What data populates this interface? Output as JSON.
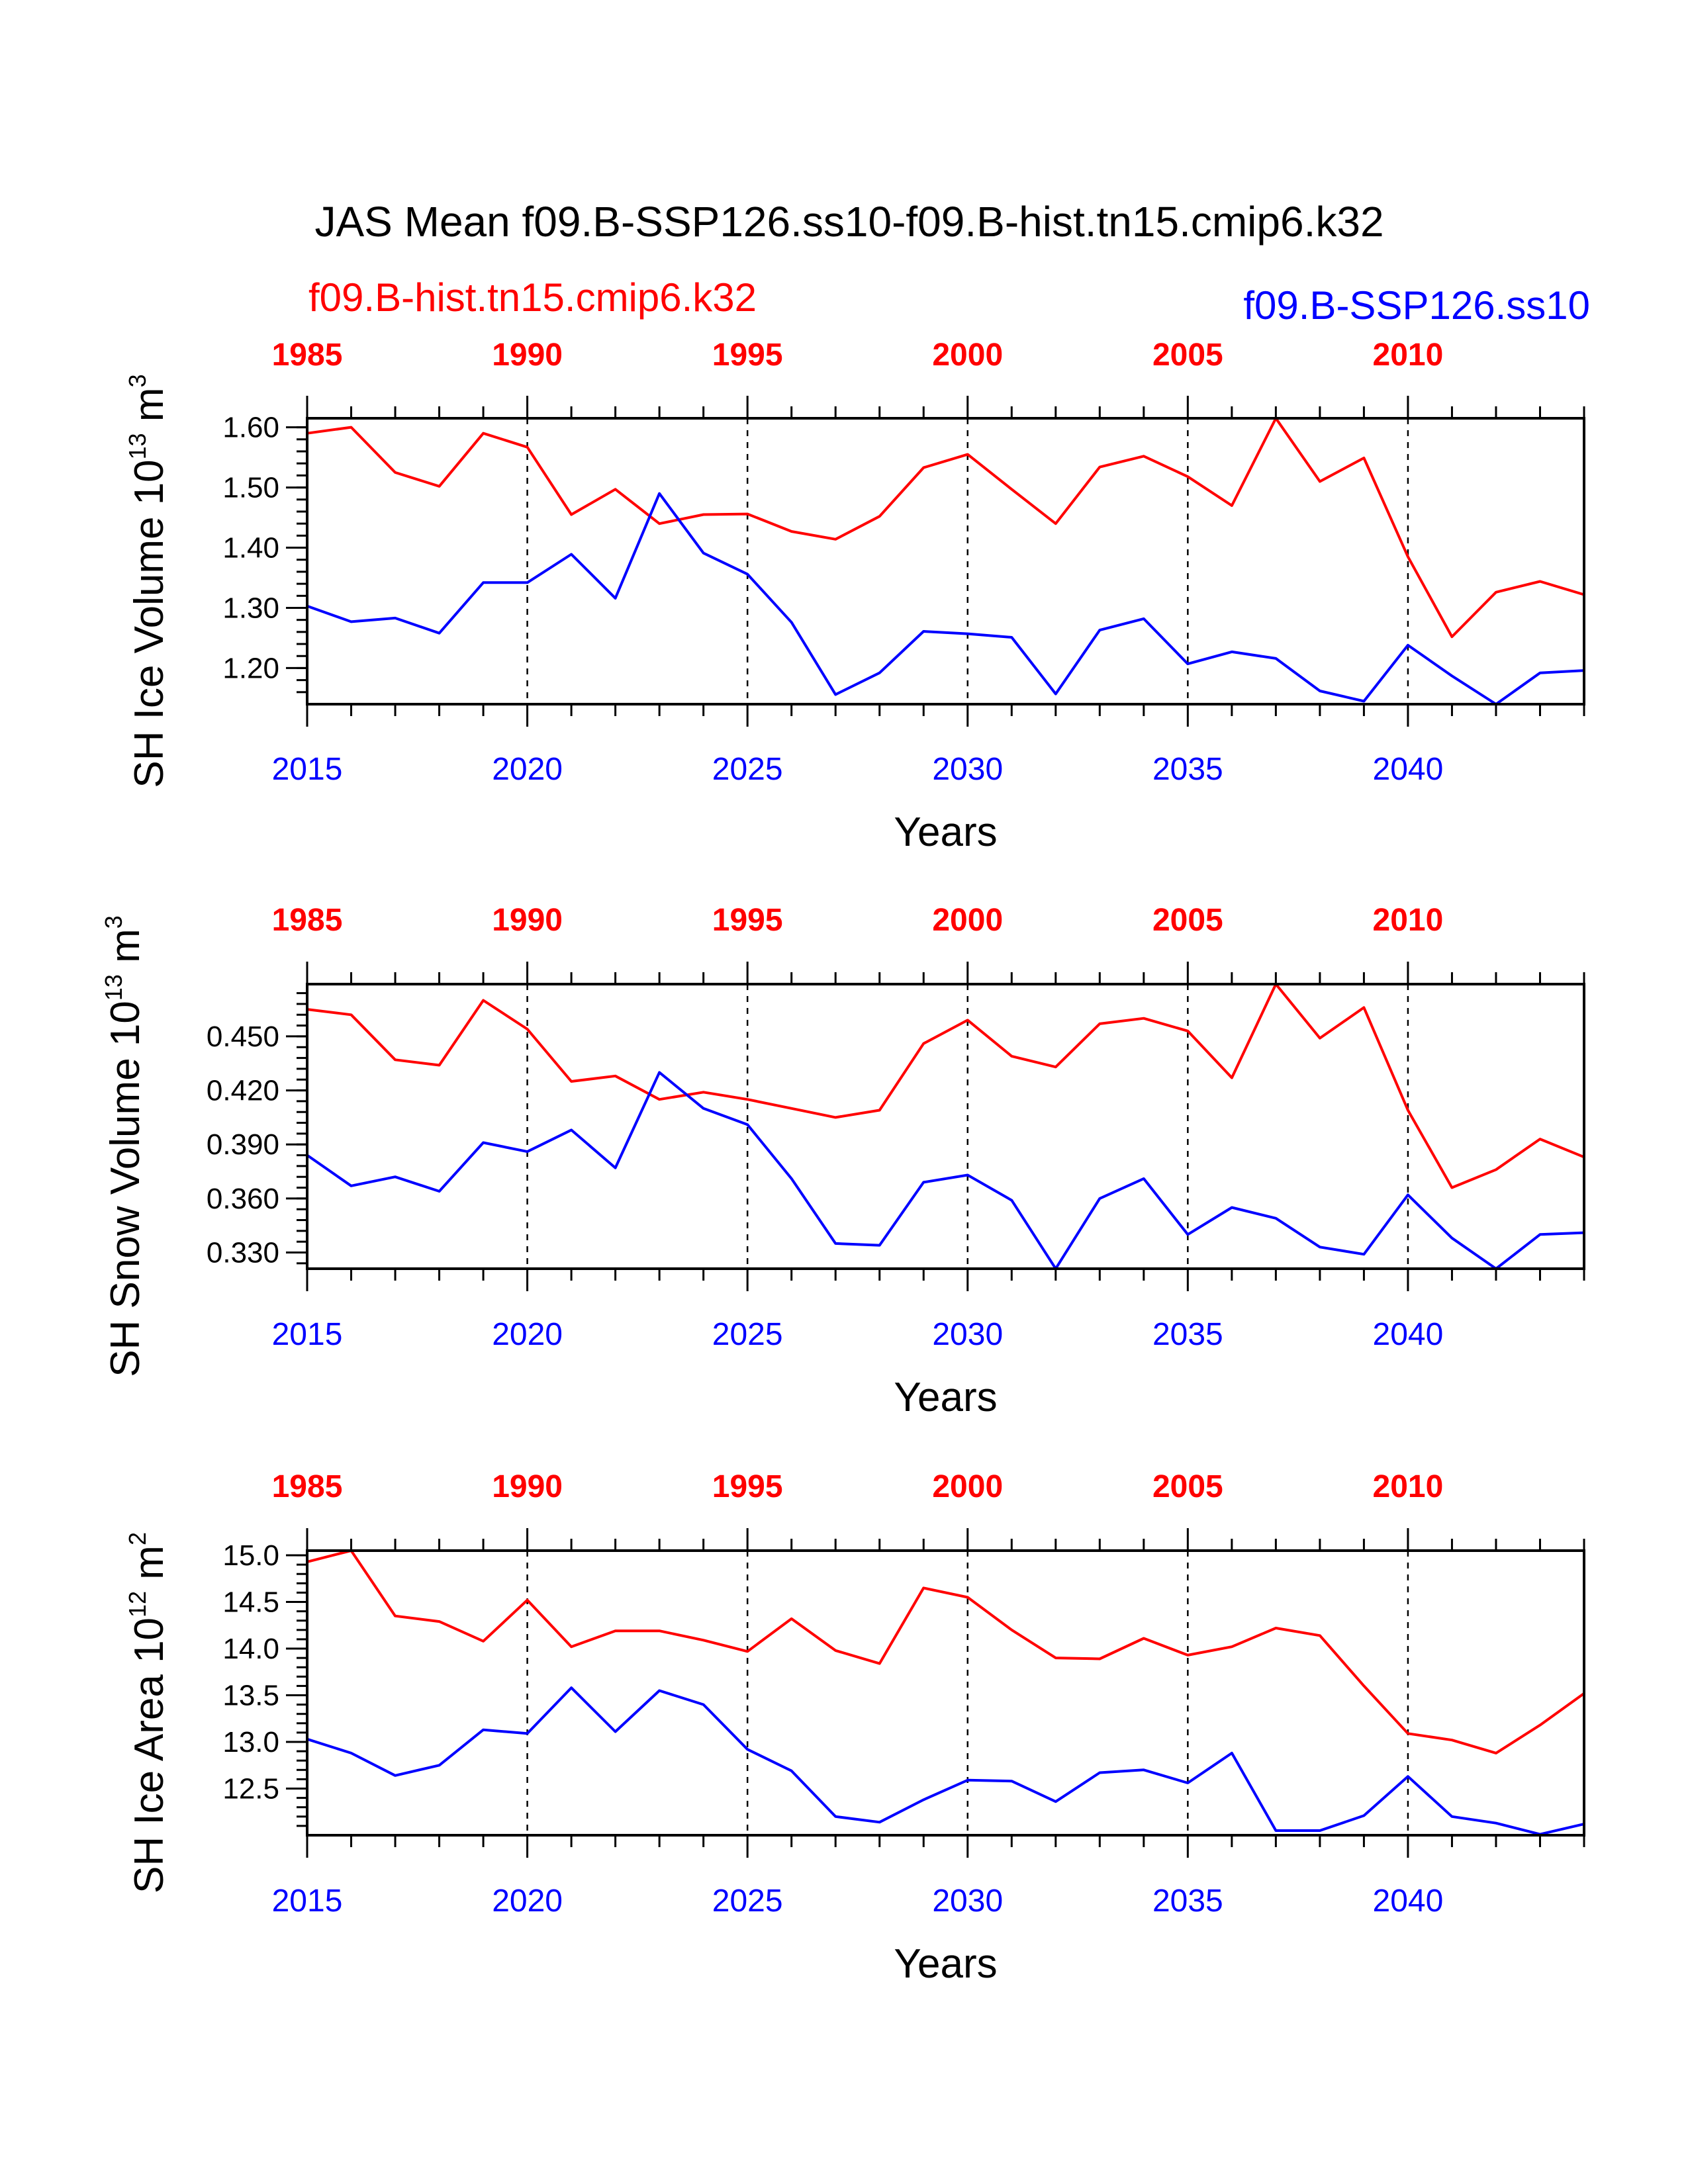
{
  "title": "JAS Mean f09.B-SSP126.ss10-f09.B-hist.tn15.cmip6.k32",
  "legend": {
    "red": "f09.B-hist.tn15.cmip6.k32",
    "blue": "f09.B-SSP126.ss10"
  },
  "colors": {
    "hist": "#ff0000",
    "ssp": "#0000ff",
    "axis": "#000000"
  },
  "chart_data": [
    {
      "type": "line",
      "ylabel_prefix": "SH Ice Volume 10",
      "ylabel_exp": "13",
      "ylabel_unit": " m",
      "ylabel_unit_exp": "3",
      "xlabel": "Years",
      "ylim": [
        1.14,
        1.615
      ],
      "yticks": [
        "1.20",
        "1.30",
        "1.40",
        "1.50",
        "1.60"
      ],
      "ytick_values": [
        1.2,
        1.3,
        1.4,
        1.5,
        1.6
      ],
      "yminor_step": 0.02,
      "x_bottom": [
        2015,
        2016,
        2017,
        2018,
        2019,
        2020,
        2021,
        2022,
        2023,
        2024,
        2025,
        2026,
        2027,
        2028,
        2029,
        2030,
        2031,
        2032,
        2033,
        2034,
        2035,
        2036,
        2037,
        2038,
        2039,
        2040,
        2041,
        2042,
        2043,
        2044
      ],
      "x_bottom_ticks": [
        "2015",
        "2020",
        "2025",
        "2030",
        "2035",
        "2040"
      ],
      "x_top_ticks": [
        "1985",
        "1990",
        "1995",
        "2000",
        "2005",
        "2010"
      ],
      "grid": "dashed vertical at labeled ticks",
      "series": [
        {
          "name": "f09.B-hist.tn15.cmip6.k32",
          "color": "#ff0000",
          "values": [
            1.59,
            1.6,
            1.525,
            1.502,
            1.59,
            1.567,
            1.455,
            1.497,
            1.44,
            1.455,
            1.456,
            1.427,
            1.414,
            1.452,
            1.533,
            1.555,
            1.497,
            1.44,
            1.534,
            1.552,
            1.518,
            1.47,
            1.615,
            1.51,
            1.549,
            1.385,
            1.252,
            1.326,
            1.344,
            1.322
          ]
        },
        {
          "name": "f09.B-SSP126.ss10",
          "color": "#0000ff",
          "values": [
            1.303,
            1.277,
            1.283,
            1.258,
            1.342,
            1.342,
            1.389,
            1.316,
            1.49,
            1.391,
            1.356,
            1.276,
            1.156,
            1.192,
            1.261,
            1.257,
            1.251,
            1.157,
            1.263,
            1.282,
            1.207,
            1.227,
            1.216,
            1.162,
            1.145,
            1.238,
            1.187,
            1.14,
            1.192,
            1.196
          ]
        }
      ]
    },
    {
      "type": "line",
      "ylabel_prefix": "SH Snow Volume 10",
      "ylabel_exp": "13",
      "ylabel_unit": " m",
      "ylabel_unit_exp": "3",
      "xlabel": "Years",
      "ylim": [
        0.321,
        0.479
      ],
      "yticks": [
        "0.330",
        "0.360",
        "0.390",
        "0.420",
        "0.450"
      ],
      "ytick_values": [
        0.33,
        0.36,
        0.39,
        0.42,
        0.45
      ],
      "yminor_step": 0.006,
      "x_bottom": [
        2015,
        2016,
        2017,
        2018,
        2019,
        2020,
        2021,
        2022,
        2023,
        2024,
        2025,
        2026,
        2027,
        2028,
        2029,
        2030,
        2031,
        2032,
        2033,
        2034,
        2035,
        2036,
        2037,
        2038,
        2039,
        2040,
        2041,
        2042,
        2043,
        2044
      ],
      "x_bottom_ticks": [
        "2015",
        "2020",
        "2025",
        "2030",
        "2035",
        "2040"
      ],
      "x_top_ticks": [
        "1985",
        "1990",
        "1995",
        "2000",
        "2005",
        "2010"
      ],
      "grid": "dashed vertical at labeled ticks",
      "series": [
        {
          "name": "f09.B-hist.tn15.cmip6.k32",
          "color": "#ff0000",
          "values": [
            0.465,
            0.462,
            0.437,
            0.434,
            0.47,
            0.454,
            0.425,
            0.428,
            0.415,
            0.419,
            0.415,
            0.41,
            0.405,
            0.409,
            0.446,
            0.459,
            0.439,
            0.433,
            0.457,
            0.46,
            0.453,
            0.427,
            0.479,
            0.449,
            0.466,
            0.409,
            0.366,
            0.376,
            0.393,
            0.383
          ]
        },
        {
          "name": "f09.B-SSP126.ss10",
          "color": "#0000ff",
          "values": [
            0.384,
            0.367,
            0.372,
            0.364,
            0.391,
            0.386,
            0.398,
            0.377,
            0.43,
            0.41,
            0.401,
            0.371,
            0.335,
            0.334,
            0.369,
            0.373,
            0.359,
            0.321,
            0.36,
            0.371,
            0.34,
            0.355,
            0.349,
            0.333,
            0.329,
            0.362,
            0.338,
            0.321,
            0.34,
            0.341
          ]
        }
      ]
    },
    {
      "type": "line",
      "ylabel_prefix": "SH Ice Area 10",
      "ylabel_exp": "12",
      "ylabel_unit": " m",
      "ylabel_unit_exp": "2",
      "xlabel": "Years",
      "ylim": [
        12.0,
        15.05
      ],
      "yticks": [
        "12.5",
        "13.0",
        "13.5",
        "14.0",
        "14.5",
        "15.0"
      ],
      "ytick_values": [
        12.5,
        13.0,
        13.5,
        14.0,
        14.5,
        15.0
      ],
      "yminor_step": 0.1,
      "x_bottom": [
        2015,
        2016,
        2017,
        2018,
        2019,
        2020,
        2021,
        2022,
        2023,
        2024,
        2025,
        2026,
        2027,
        2028,
        2029,
        2030,
        2031,
        2032,
        2033,
        2034,
        2035,
        2036,
        2037,
        2038,
        2039,
        2040,
        2041,
        2042,
        2043,
        2044
      ],
      "x_bottom_ticks": [
        "2015",
        "2020",
        "2025",
        "2030",
        "2035",
        "2040"
      ],
      "x_top_ticks": [
        "1985",
        "1990",
        "1995",
        "2000",
        "2005",
        "2010"
      ],
      "grid": "dashed vertical at labeled ticks",
      "series": [
        {
          "name": "f09.B-hist.tn15.cmip6.k32",
          "color": "#ff0000",
          "values": [
            14.93,
            15.05,
            14.35,
            14.29,
            14.08,
            14.52,
            14.02,
            14.19,
            14.19,
            14.09,
            13.97,
            14.32,
            13.98,
            13.84,
            14.65,
            14.55,
            14.2,
            13.9,
            13.89,
            14.11,
            13.93,
            14.02,
            14.22,
            14.14,
            13.6,
            13.09,
            13.02,
            12.88,
            13.18,
            13.52
          ]
        },
        {
          "name": "f09.B-SSP126.ss10",
          "color": "#0000ff",
          "values": [
            13.03,
            12.88,
            12.64,
            12.75,
            13.13,
            13.09,
            13.58,
            13.11,
            13.55,
            13.4,
            12.92,
            12.69,
            12.2,
            12.14,
            12.38,
            12.59,
            12.58,
            12.36,
            12.67,
            12.7,
            12.56,
            12.88,
            12.05,
            12.05,
            12.21,
            12.63,
            12.2,
            12.13,
            12.01,
            12.12
          ]
        }
      ]
    }
  ]
}
